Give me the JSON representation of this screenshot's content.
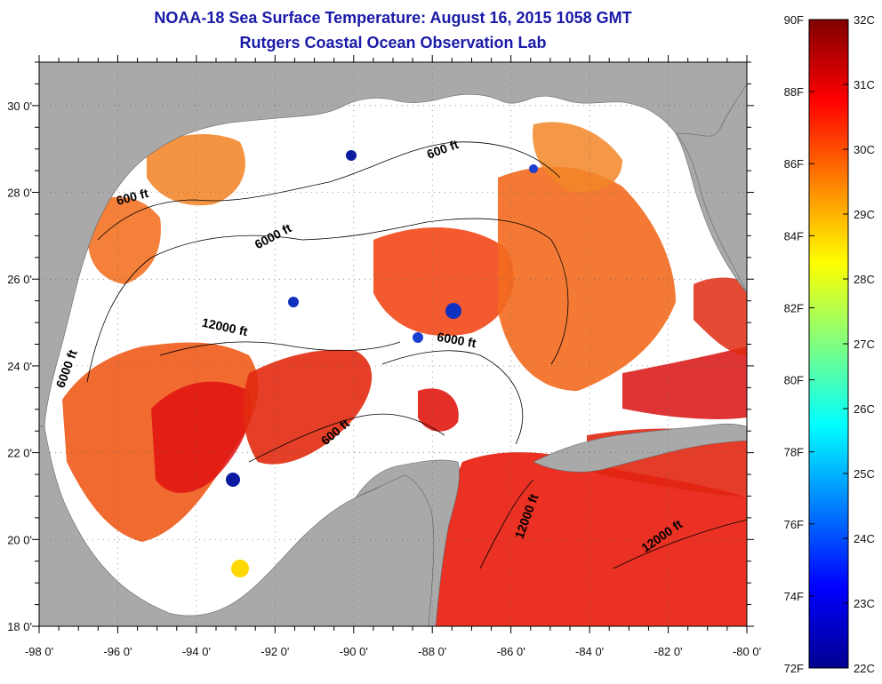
{
  "header": {
    "title": "NOAA-18 Sea Surface Temperature:  August 16, 2015 1058 GMT",
    "subtitle": "Rutgers Coastal Ocean Observation Lab"
  },
  "map": {
    "lon_range": [
      -98,
      -80
    ],
    "lat_range": [
      18,
      31
    ],
    "lon_ticks": [
      {
        "value": -98,
        "label": "-98 0'"
      },
      {
        "value": -96,
        "label": "-96 0'"
      },
      {
        "value": -94,
        "label": "-94 0'"
      },
      {
        "value": -92,
        "label": "-92 0'"
      },
      {
        "value": -90,
        "label": "-90 0'"
      },
      {
        "value": -88,
        "label": "-88 0'"
      },
      {
        "value": -86,
        "label": "-86 0'"
      },
      {
        "value": -84,
        "label": "-84 0'"
      },
      {
        "value": -82,
        "label": "-82 0'"
      },
      {
        "value": -80,
        "label": "-80 0'"
      }
    ],
    "lat_ticks": [
      {
        "value": 18,
        "label": "18 0'"
      },
      {
        "value": 20,
        "label": "20 0'"
      },
      {
        "value": 22,
        "label": "22 0'"
      },
      {
        "value": 24,
        "label": "24 0'"
      },
      {
        "value": 26,
        "label": "26 0'"
      },
      {
        "value": 28,
        "label": "28 0'"
      },
      {
        "value": 30,
        "label": "30 0'"
      }
    ],
    "land_color": "#a9a9a9",
    "no_data_color": "#ffffff",
    "contour_labels": [
      {
        "text": "600 ft",
        "lon": -87.7,
        "lat": 28.9,
        "rotate": -20
      },
      {
        "text": "600 ft",
        "lon": -95.6,
        "lat": 27.8,
        "rotate": -15
      },
      {
        "text": "6000 ft",
        "lon": -92.0,
        "lat": 26.9,
        "rotate": -28
      },
      {
        "text": "12000 ft",
        "lon": -93.3,
        "lat": 24.8,
        "rotate": 12
      },
      {
        "text": "6000 ft",
        "lon": -97.2,
        "lat": 23.9,
        "rotate": -70
      },
      {
        "text": "6000 ft",
        "lon": -87.4,
        "lat": 24.5,
        "rotate": 10
      },
      {
        "text": "600 ft",
        "lon": -90.4,
        "lat": 22.4,
        "rotate": -40
      },
      {
        "text": "12000 ft",
        "lon": -85.5,
        "lat": 20.5,
        "rotate": -70
      },
      {
        "text": "12000 ft",
        "lon": -82.1,
        "lat": 20.0,
        "rotate": -35
      }
    ]
  },
  "colorbar": {
    "f_range": [
      72,
      90
    ],
    "c_range": [
      22,
      32
    ],
    "f_ticks": [
      {
        "value": 90,
        "label": "90F"
      },
      {
        "value": 88,
        "label": "88F"
      },
      {
        "value": 86,
        "label": "86F"
      },
      {
        "value": 84,
        "label": "84F"
      },
      {
        "value": 82,
        "label": "82F"
      },
      {
        "value": 80,
        "label": "80F"
      },
      {
        "value": 78,
        "label": "78F"
      },
      {
        "value": 76,
        "label": "76F"
      },
      {
        "value": 74,
        "label": "74F"
      },
      {
        "value": 72,
        "label": "72F"
      }
    ],
    "c_ticks": [
      {
        "value": 32,
        "label": "32C"
      },
      {
        "value": 31,
        "label": "31C"
      },
      {
        "value": 30,
        "label": "30C"
      },
      {
        "value": 29,
        "label": "29C"
      },
      {
        "value": 28,
        "label": "28C"
      },
      {
        "value": 27,
        "label": "27C"
      },
      {
        "value": 26,
        "label": "26C"
      },
      {
        "value": 25,
        "label": "25C"
      },
      {
        "value": 24,
        "label": "24C"
      },
      {
        "value": 23,
        "label": "23C"
      },
      {
        "value": 22,
        "label": "22C"
      }
    ],
    "colors": [
      "#00008f",
      "#0000ff",
      "#0080ff",
      "#00ffff",
      "#80ff80",
      "#ffff00",
      "#ff8000",
      "#ff0000",
      "#800000"
    ]
  }
}
